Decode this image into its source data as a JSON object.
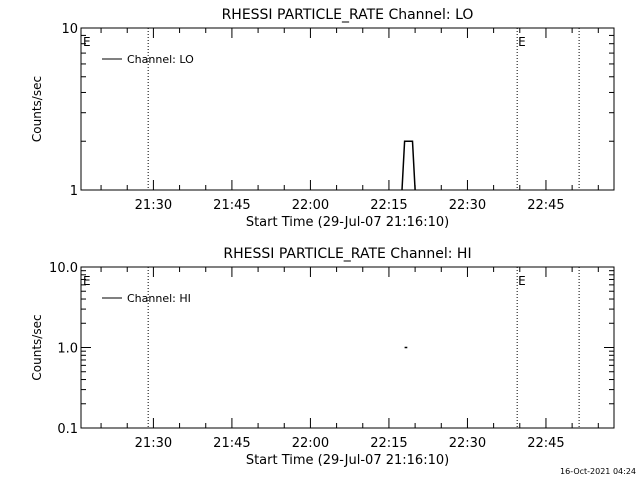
{
  "colors": {
    "background": "#ffffff",
    "foreground": "#000000"
  },
  "chart_data": [
    {
      "type": "line",
      "title": "RHESSI PARTICLE_RATE Channel: LO",
      "xlabel": "Start Time (29-Jul-07 21:16:10)",
      "ylabel": "Counts/sec",
      "y_scale": "log",
      "ylim": [
        1,
        10
      ],
      "xlim": [
        "21:16:10",
        "22:58:00"
      ],
      "x_ticks": [
        "21:30",
        "21:45",
        "22:00",
        "22:15",
        "22:30",
        "22:45"
      ],
      "y_ticks": [
        "1",
        "10"
      ],
      "grid": false,
      "legend_position": "top-left",
      "series": [
        {
          "name": "Channel: LO",
          "x": [
            "22:17:30",
            "22:18:00",
            "22:19:30",
            "22:20:00"
          ],
          "values": [
            1,
            2,
            2,
            1
          ]
        }
      ],
      "vertical_dotted_lines": [
        "21:29:00",
        "22:39:30",
        "22:51:20"
      ],
      "annotations": [
        {
          "text": "E",
          "x": "21:16:10"
        },
        {
          "text": "E",
          "x": "22:39:30"
        }
      ]
    },
    {
      "type": "line",
      "title": "RHESSI PARTICLE_RATE Channel: HI",
      "xlabel": "Start Time (29-Jul-07 21:16:10)",
      "ylabel": "Counts/sec",
      "y_scale": "log",
      "ylim": [
        0.1,
        10
      ],
      "xlim": [
        "21:16:10",
        "22:58:00"
      ],
      "x_ticks": [
        "21:30",
        "21:45",
        "22:00",
        "22:15",
        "22:30",
        "22:45"
      ],
      "y_ticks": [
        "0.1",
        "1.0",
        "10.0"
      ],
      "grid": false,
      "legend_position": "top-left",
      "series": [
        {
          "name": "Channel: HI",
          "x": [
            "22:18:00",
            "22:18:30"
          ],
          "values": [
            1,
            1
          ]
        }
      ],
      "vertical_dotted_lines": [
        "21:29:00",
        "22:39:30",
        "22:51:20"
      ],
      "annotations": [
        {
          "text": "E",
          "x": "21:16:10"
        },
        {
          "text": "E",
          "x": "22:39:30"
        }
      ]
    }
  ],
  "footer": {
    "timestamp": "16-Oct-2021 04:24"
  }
}
